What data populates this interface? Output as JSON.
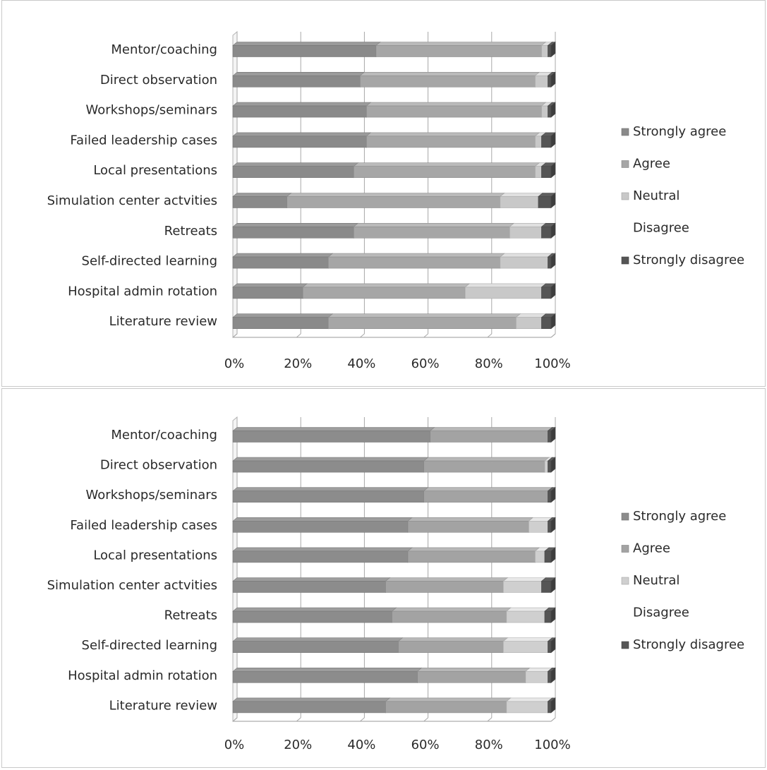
{
  "chart_data": [
    {
      "type": "bar",
      "orientation": "horizontal",
      "stacked": "percent",
      "title": "",
      "xlabel": "",
      "ylabel": "",
      "xlim": [
        0,
        100
      ],
      "x_ticks": [
        "0%",
        "20%",
        "40%",
        "60%",
        "80%",
        "100%"
      ],
      "grid": "vertical",
      "legend_position": "right",
      "categories": [
        "Mentor/coaching",
        "Direct observation",
        "Workshops/seminars",
        "Failed leadership cases",
        "Local presentations",
        "Simulation center actvities",
        "Retreats",
        "Self-directed learning",
        "Hospital admin rotation",
        "Literature review"
      ],
      "series": [
        {
          "name": "Strongly agree",
          "color": "#8a8a8a",
          "values": [
            45,
            40,
            42,
            42,
            38,
            17,
            38,
            30,
            22,
            30
          ]
        },
        {
          "name": "Agree",
          "color": "#a6a6a6",
          "values": [
            52,
            55,
            55,
            53,
            57,
            67,
            49,
            54,
            51,
            59
          ]
        },
        {
          "name": "Neutral",
          "color": "#c8c8c8",
          "values": [
            2,
            4,
            2,
            2,
            2,
            12,
            10,
            15,
            24,
            8
          ]
        },
        {
          "name": "Disagree",
          "color": "#ffffff",
          "values": [
            0,
            0,
            0,
            0,
            0,
            0,
            0,
            0,
            0,
            0
          ]
        },
        {
          "name": "Strongly disagree",
          "color": "#555555",
          "values": [
            1,
            1,
            1,
            3,
            3,
            4,
            3,
            1,
            3,
            3
          ]
        }
      ]
    },
    {
      "type": "bar",
      "orientation": "horizontal",
      "stacked": "percent",
      "title": "",
      "xlabel": "",
      "ylabel": "",
      "xlim": [
        0,
        100
      ],
      "x_ticks": [
        "0%",
        "20%",
        "40%",
        "60%",
        "80%",
        "100%"
      ],
      "grid": "vertical",
      "legend_position": "right",
      "categories": [
        "Mentor/coaching",
        "Direct observation",
        "Workshops/seminars",
        "Failed leadership cases",
        "Local presentations",
        "Simulation center actvities",
        "Retreats",
        "Self-directed learning",
        "Hospital admin rotation",
        "Literature review"
      ],
      "series": [
        {
          "name": "Strongly agree",
          "color": "#8c8c8c",
          "values": [
            62,
            60,
            60,
            55,
            55,
            48,
            50,
            52,
            58,
            48
          ]
        },
        {
          "name": "Agree",
          "color": "#a3a3a3",
          "values": [
            37,
            38,
            39,
            38,
            40,
            37,
            36,
            33,
            34,
            38
          ]
        },
        {
          "name": "Neutral",
          "color": "#cfcfcf",
          "values": [
            0,
            1,
            0,
            6,
            3,
            12,
            12,
            14,
            7,
            13
          ]
        },
        {
          "name": "Disagree",
          "color": "#ffffff",
          "values": [
            0,
            0,
            0,
            0,
            0,
            0,
            0,
            0,
            0,
            0
          ]
        },
        {
          "name": "Strongly disagree",
          "color": "#555555",
          "values": [
            1,
            1,
            1,
            1,
            2,
            3,
            2,
            1,
            1,
            1
          ]
        }
      ]
    }
  ]
}
